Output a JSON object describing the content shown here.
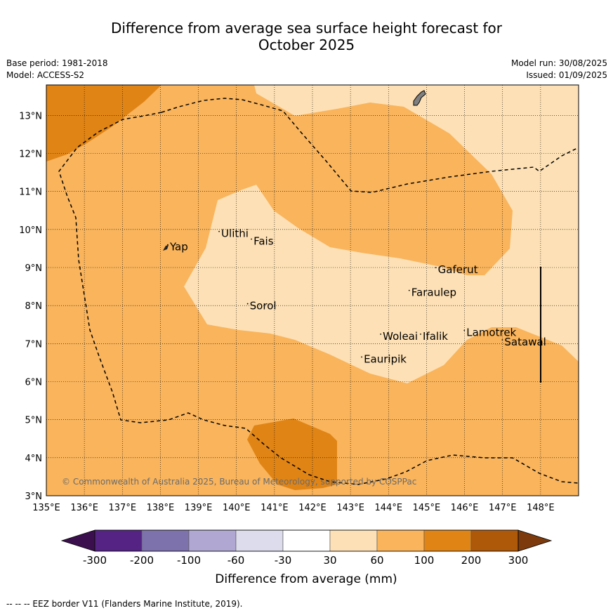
{
  "title_line1": "Difference from average sea surface height forecast for",
  "title_line2": "October 2025",
  "base_period": "Base period: 1981-2018",
  "model": "Model: ACCESS-S2",
  "model_run": "Model run: 30/08/2025",
  "issued": "Issued: 01/09/2025",
  "copyright": "© Commonwealth of Australia 2025, Bureau of Meteorology, supported by COSPPac",
  "footnote": "--  --  -- EEZ border V11 (Flanders Marine Institute, 2019).",
  "map": {
    "lon_range": [
      135,
      149
    ],
    "lat_range": [
      3,
      13.8
    ],
    "lon_ticks": [
      "135°E",
      "136°E",
      "137°E",
      "138°E",
      "139°E",
      "140°E",
      "141°E",
      "142°E",
      "143°E",
      "144°E",
      "145°E",
      "146°E",
      "147°E",
      "148°E"
    ],
    "lat_ticks": [
      "3°N",
      "4°N",
      "5°N",
      "6°N",
      "7°N",
      "8°N",
      "9°N",
      "10°N",
      "11°N",
      "12°N",
      "13°N"
    ],
    "colors": {
      "c30_60": "#fde0b5",
      "c60_100": "#f9b45c",
      "c100_200": "#e08415",
      "land": "#808080"
    },
    "places": [
      {
        "name": "Yap",
        "lon": 138.25,
        "lat": 9.45
      },
      {
        "name": "Ulithi",
        "lon": 139.6,
        "lat": 9.8
      },
      {
        "name": "Fais",
        "lon": 140.45,
        "lat": 9.6
      },
      {
        "name": "Gaferut",
        "lon": 145.3,
        "lat": 8.85
      },
      {
        "name": "Faraulep",
        "lon": 144.6,
        "lat": 8.25
      },
      {
        "name": "Sorol",
        "lon": 140.35,
        "lat": 7.9
      },
      {
        "name": "Woleai",
        "lon": 143.85,
        "lat": 7.1
      },
      {
        "name": "Ifalik",
        "lon": 144.9,
        "lat": 7.1
      },
      {
        "name": "Lamotrek",
        "lon": 146.05,
        "lat": 7.2
      },
      {
        "name": "Satawal",
        "lon": 147.05,
        "lat": 6.95
      },
      {
        "name": "Eauripik",
        "lon": 143.35,
        "lat": 6.5
      }
    ]
  },
  "colorbar": {
    "label": "Difference from average (mm)",
    "ticks": [
      "-300",
      "-200",
      "-100",
      "-60",
      "-30",
      "30",
      "60",
      "100",
      "200",
      "300"
    ],
    "colors": [
      "#3b0f4e",
      "#542384",
      "#7e72ad",
      "#b0a8d3",
      "#dcdcec",
      "#ffffff",
      "#fde0b5",
      "#f9b45c",
      "#e08415",
      "#ae5809",
      "#7d3a0c"
    ]
  }
}
